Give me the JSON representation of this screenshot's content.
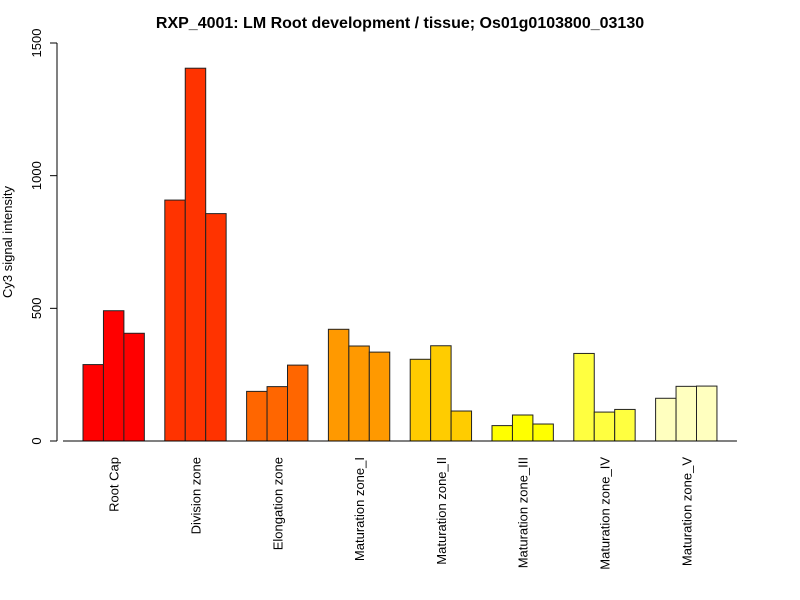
{
  "chart_data": {
    "type": "bar",
    "title": "RXP_4001: LM Root development / tissue; Os01g0103800_03130",
    "xlabel": "",
    "ylabel": "Cy3 signal intensity",
    "ylim": [
      0,
      1500
    ],
    "yticks": [
      0,
      500,
      1000,
      1500
    ],
    "ytick_labels": [
      "0",
      "500",
      "1000",
      "1500"
    ],
    "grid": false,
    "legend": "none",
    "categories": [
      "Root Cap",
      "Division zone",
      "Elongation zone",
      "Maturation zone_I",
      "Maturation zone_II",
      "Maturation zone_III",
      "Maturation zone_IV",
      "Maturation zone_V"
    ],
    "colors": [
      "#FF0000",
      "#FF3300",
      "#FF6600",
      "#FF9900",
      "#FFCC00",
      "#FFFF00",
      "#FFFF40",
      "#FFFFBF"
    ],
    "replicates": [
      [
        288,
        491,
        406
      ],
      [
        908,
        1405,
        857
      ],
      [
        187,
        205,
        286
      ],
      [
        421,
        358,
        335
      ],
      [
        308,
        359,
        113
      ],
      [
        58,
        98,
        64
      ],
      [
        330,
        109,
        119
      ],
      [
        161,
        206,
        207
      ]
    ]
  }
}
